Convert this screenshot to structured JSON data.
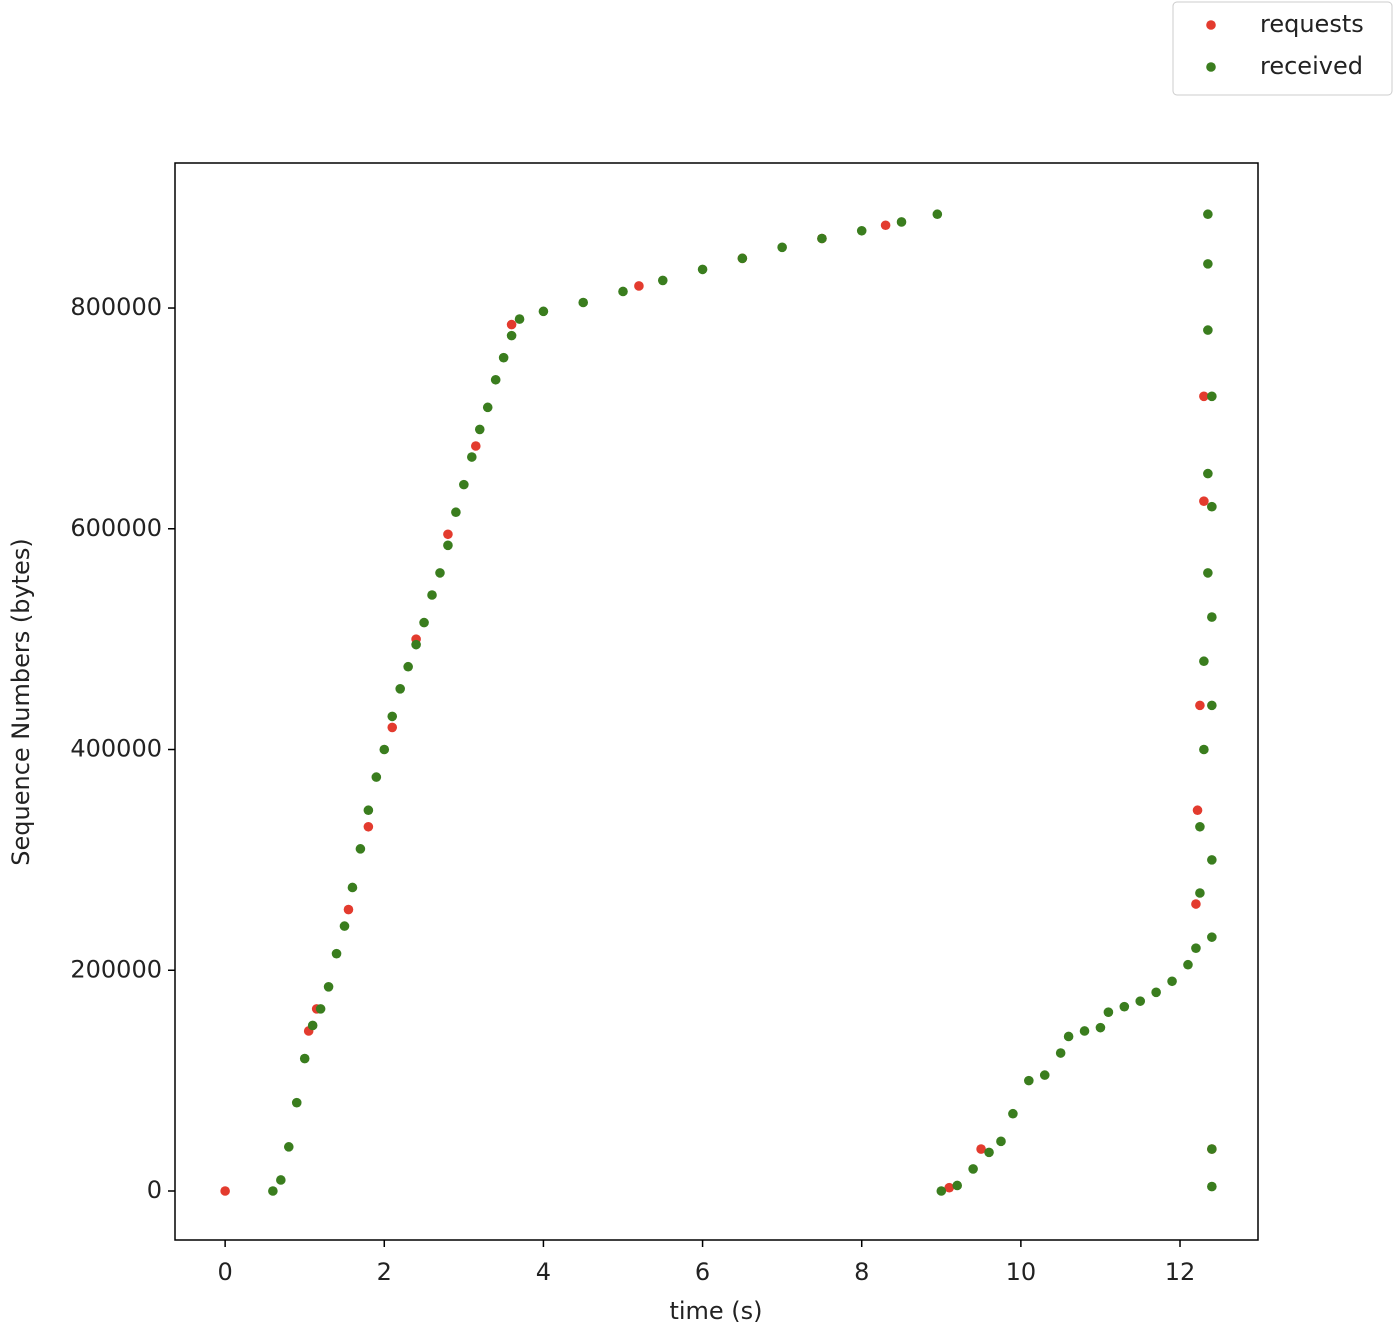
{
  "chart_data": {
    "type": "scatter",
    "xlabel": "time (s)",
    "ylabel": "Sequence Numbers (bytes)",
    "xlim": [
      -0.63,
      12.98
    ],
    "ylim": [
      -44400,
      931400
    ],
    "xticks": [
      0,
      2,
      4,
      6,
      8,
      10,
      12
    ],
    "yticks": [
      0,
      200000,
      400000,
      600000,
      800000
    ],
    "legend": "upper right outside",
    "series": [
      {
        "name": "requests",
        "color": "#e33b2e",
        "x": [
          0,
          1.05,
          1.15,
          1.55,
          1.8,
          2.1,
          2.4,
          2.8,
          3.15,
          3.6,
          5.2,
          6.5,
          7.5,
          8.3,
          9.1,
          9.5,
          12.2,
          12.22,
          12.25,
          12.3,
          12.3,
          12.4
        ],
        "values": [
          0,
          145000,
          165000,
          255000,
          330000,
          420000,
          500000,
          595000,
          675000,
          785000,
          820000,
          845000,
          863000,
          875000,
          3000,
          38000,
          260000,
          345000,
          440000,
          625000,
          720000,
          38000
        ]
      },
      {
        "name": "received",
        "color": "#3a7d1e",
        "x": [
          0.6,
          0.7,
          0.8,
          0.9,
          1.0,
          1.1,
          1.2,
          1.3,
          1.4,
          1.5,
          1.6,
          1.7,
          1.8,
          1.9,
          2.0,
          2.1,
          2.2,
          2.3,
          2.4,
          2.5,
          2.6,
          2.7,
          2.8,
          2.9,
          3.0,
          3.1,
          3.2,
          3.3,
          3.4,
          3.5,
          3.6,
          3.7,
          4.0,
          4.5,
          5.0,
          5.5,
          6.0,
          6.5,
          7.0,
          7.5,
          8.0,
          8.5,
          8.95,
          9.0,
          9.2,
          9.4,
          9.6,
          9.75,
          9.9,
          10.1,
          10.3,
          10.5,
          10.6,
          10.8,
          11.0,
          11.1,
          11.3,
          11.5,
          11.7,
          11.9,
          12.1,
          12.2,
          12.25,
          12.25,
          12.3,
          12.3,
          12.35,
          12.35,
          12.4,
          12.35,
          12.35,
          12.35,
          12.4,
          12.4,
          12.4,
          12.4,
          12.4,
          12.4,
          12.4
        ],
        "values": [
          0,
          10000,
          40000,
          80000,
          120000,
          150000,
          165000,
          185000,
          215000,
          240000,
          275000,
          310000,
          345000,
          375000,
          400000,
          430000,
          455000,
          475000,
          495000,
          515000,
          540000,
          560000,
          585000,
          615000,
          640000,
          665000,
          690000,
          710000,
          735000,
          755000,
          775000,
          790000,
          797000,
          805000,
          815000,
          825000,
          835000,
          845000,
          855000,
          863000,
          870000,
          878000,
          885000,
          0,
          5000,
          20000,
          35000,
          45000,
          70000,
          100000,
          105000,
          125000,
          140000,
          145000,
          148000,
          162000,
          167000,
          172000,
          180000,
          190000,
          205000,
          220000,
          270000,
          330000,
          400000,
          480000,
          560000,
          650000,
          720000,
          780000,
          840000,
          885000,
          230000,
          300000,
          440000,
          520000,
          620000,
          38000,
          4000
        ]
      }
    ]
  }
}
